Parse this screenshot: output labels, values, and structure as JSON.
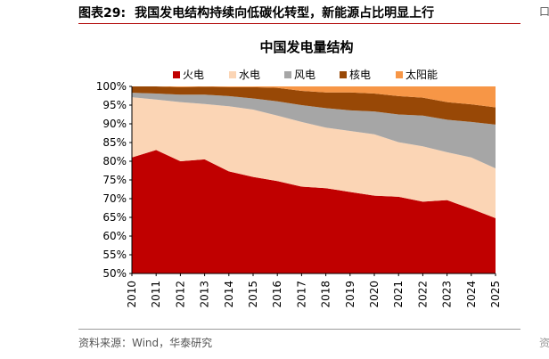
{
  "page": {
    "figure_label": "图表29:",
    "figure_title": "我国发电结构持续向低碳化转型，新能源占比明显上行",
    "source": "资料来源：Wind，华泰研究",
    "edge_top_right": "口",
    "edge_bottom_right": "资"
  },
  "colors": {
    "火电": "#c00000",
    "水电": "#fbd5b5",
    "风电": "#a6a6a6",
    "核电": "#984806",
    "太阳能": "#f79646",
    "accent_line": "#b00000"
  },
  "chart_data": {
    "type": "area",
    "stacked": true,
    "normalized": true,
    "title": "中国发电量结构",
    "x": [
      "2010",
      "2011",
      "2012",
      "2013",
      "2014",
      "2015",
      "2016",
      "2017",
      "2018",
      "2019",
      "2020",
      "2021",
      "2022",
      "2023",
      "2024",
      "2025"
    ],
    "ylim": [
      0.5,
      1.0
    ],
    "yticks": [
      "50%",
      "55%",
      "60%",
      "65%",
      "70%",
      "75%",
      "80%",
      "85%",
      "90%",
      "95%",
      "100%"
    ],
    "legend_position": "top",
    "grid": false,
    "series": [
      {
        "name": "火电",
        "values": [
          0.81,
          0.83,
          0.8,
          0.805,
          0.773,
          0.758,
          0.747,
          0.732,
          0.728,
          0.718,
          0.708,
          0.705,
          0.692,
          0.696,
          0.673,
          0.648
        ]
      },
      {
        "name": "水电",
        "values": [
          0.161,
          0.135,
          0.158,
          0.148,
          0.174,
          0.18,
          0.175,
          0.173,
          0.162,
          0.163,
          0.164,
          0.146,
          0.148,
          0.128,
          0.137,
          0.133
        ]
      },
      {
        "name": "风电",
        "values": [
          0.012,
          0.016,
          0.02,
          0.025,
          0.027,
          0.03,
          0.038,
          0.045,
          0.052,
          0.055,
          0.061,
          0.074,
          0.082,
          0.087,
          0.095,
          0.117
        ]
      },
      {
        "name": "核电",
        "values": [
          0.017,
          0.019,
          0.02,
          0.021,
          0.024,
          0.03,
          0.036,
          0.038,
          0.042,
          0.048,
          0.048,
          0.049,
          0.048,
          0.047,
          0.047,
          0.046
        ]
      },
      {
        "name": "太阳能",
        "values": [
          0.0,
          0.0,
          0.002,
          0.001,
          0.002,
          0.002,
          0.004,
          0.012,
          0.016,
          0.016,
          0.019,
          0.026,
          0.03,
          0.042,
          0.048,
          0.056
        ]
      }
    ]
  }
}
